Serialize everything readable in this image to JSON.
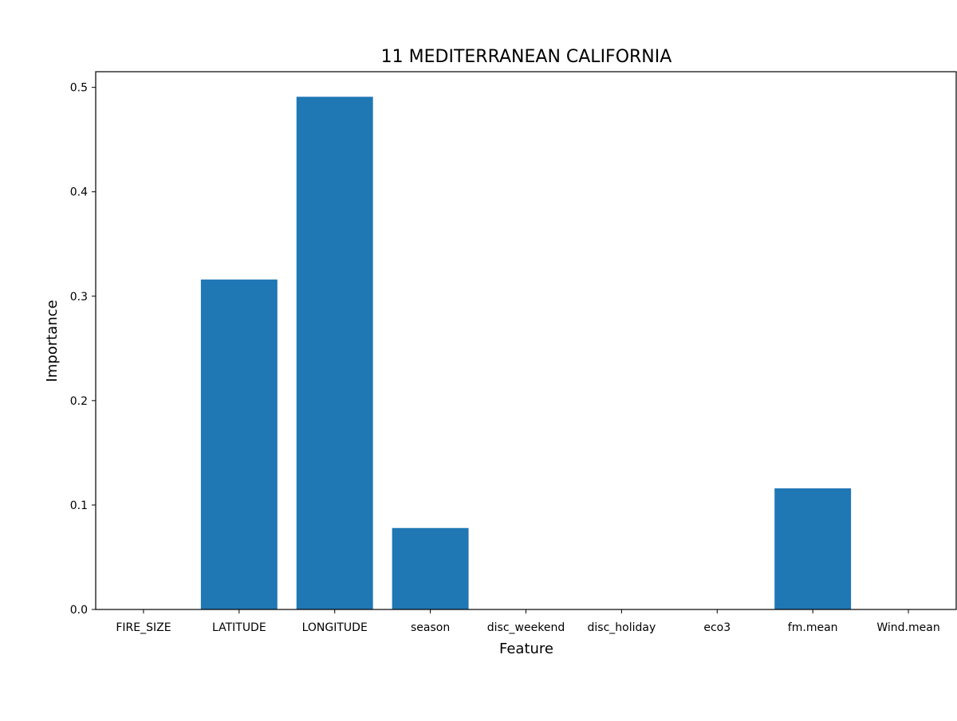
{
  "chart_data": {
    "type": "bar",
    "title": "11  MEDITERRANEAN CALIFORNIA",
    "xlabel": "Feature",
    "ylabel": "Importance",
    "categories": [
      "FIRE_SIZE",
      "LATITUDE",
      "LONGITUDE",
      "season",
      "disc_weekend",
      "disc_holiday",
      "eco3",
      "fm.mean",
      "Wind.mean"
    ],
    "values": [
      0.0,
      0.316,
      0.491,
      0.078,
      0.0,
      0.0,
      0.0,
      0.116,
      0.0
    ],
    "ylim": [
      0,
      0.515
    ],
    "yticks": [
      "0.0",
      "0.1",
      "0.2",
      "0.3",
      "0.4",
      "0.5"
    ],
    "grid": false,
    "bar_color": "#1f77b4"
  }
}
